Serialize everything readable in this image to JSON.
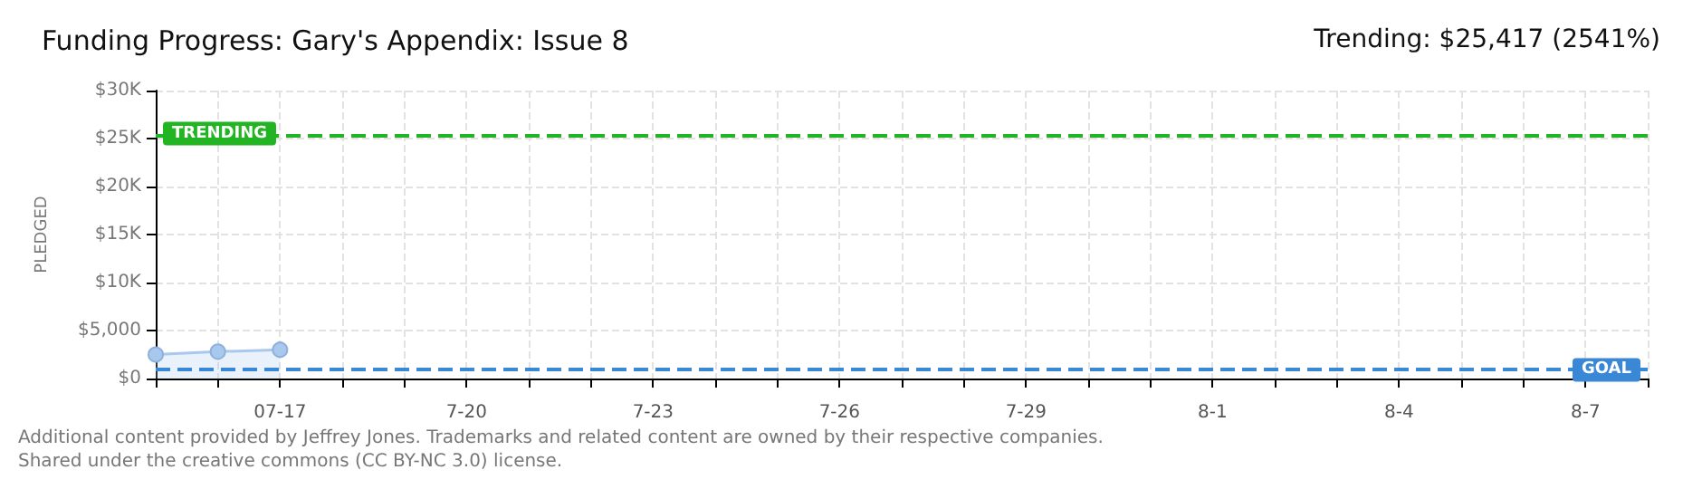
{
  "chart_data": {
    "type": "area",
    "title": "Funding Progress: Gary's Appendix: Issue 8",
    "subtitle": "Trending: $25,417 (2541%)",
    "ylabel": "PLEDGED",
    "x": [
      "--07-15",
      "--07-16",
      "--07-17"
    ],
    "series": [
      {
        "color": "#a9c8ee",
        "values": [
          2500,
          2800,
          3000
        ]
      }
    ],
    "xlim": [
      "--07-15",
      "--08-08"
    ],
    "xticks": [
      {
        "value": "--07-15",
        "label": null
      },
      {
        "value": "--07-16",
        "label": null
      },
      {
        "value": "--07-17",
        "label": "07-17"
      },
      {
        "value": "--07-18",
        "label": null
      },
      {
        "value": "--07-19",
        "label": null
      },
      {
        "value": "--07-20",
        "label": "7-20"
      },
      {
        "value": "--07-21",
        "label": null
      },
      {
        "value": "--07-22",
        "label": null
      },
      {
        "value": "--07-23",
        "label": "7-23"
      },
      {
        "value": "--07-24",
        "label": null
      },
      {
        "value": "--07-25",
        "label": null
      },
      {
        "value": "--07-26",
        "label": "7-26"
      },
      {
        "value": "--07-27",
        "label": null
      },
      {
        "value": "--07-28",
        "label": null
      },
      {
        "value": "--07-29",
        "label": "7-29"
      },
      {
        "value": "--07-30",
        "label": null
      },
      {
        "value": "--07-31",
        "label": null
      },
      {
        "value": "--08-01",
        "label": "8-1"
      },
      {
        "value": "--08-02",
        "label": null
      },
      {
        "value": "--08-03",
        "label": null
      },
      {
        "value": "--08-04",
        "label": "8-4"
      },
      {
        "value": "--08-05",
        "label": null
      },
      {
        "value": "--08-06",
        "label": null
      },
      {
        "value": "--08-07",
        "label": "8-7"
      },
      {
        "value": "--08-08",
        "label": null
      }
    ],
    "ylim": [
      0,
      30000
    ],
    "yticks": [
      {
        "value": 0,
        "label": "$0"
      },
      {
        "value": 5000,
        "label": "$5,000"
      },
      {
        "value": 10000,
        "label": "$10K"
      },
      {
        "value": 15000,
        "label": "$15K"
      },
      {
        "value": 20000,
        "label": "$20K"
      },
      {
        "value": 25000,
        "label": "$25K"
      },
      {
        "value": 30000,
        "label": "$30K"
      }
    ],
    "ref_lines": [
      {
        "axis": "y",
        "value": 25417,
        "label": "TRENDING",
        "color": "#22b422",
        "line_style": "dashed"
      },
      {
        "axis": "y",
        "value": 1000,
        "label": "GOAL",
        "color": "#3a87d6",
        "line_style": "dashed"
      }
    ],
    "grid": true,
    "marker": "circle",
    "annotations": [
      "Additional content provided by Jeffrey Jones. Trademarks and related content are owned by their respective companies.",
      "Shared under the creative commons (CC BY-NC 3.0) license."
    ]
  }
}
